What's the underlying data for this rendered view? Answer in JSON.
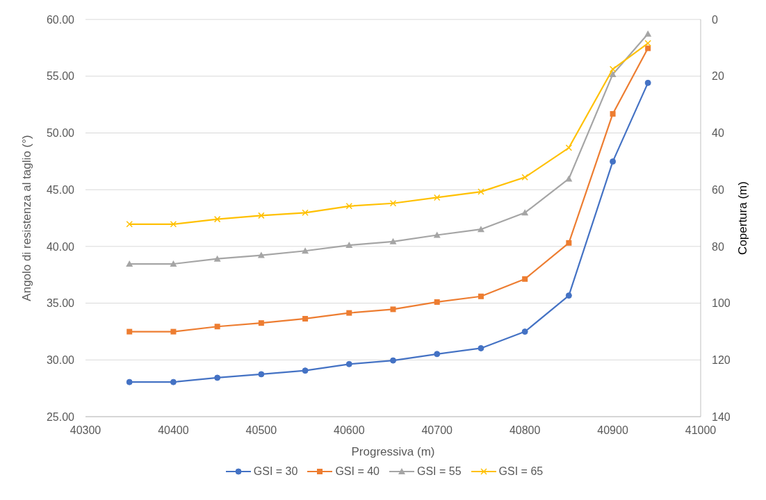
{
  "chart_data": {
    "type": "line",
    "xlabel": "Progressiva (m)",
    "ylabel": "Angolo di resistenza al taglio (°)",
    "y2label": "Copertura (m)",
    "x": [
      40350,
      40400,
      40450,
      40500,
      40550,
      40600,
      40650,
      40700,
      40750,
      40800,
      40850,
      40900,
      40940
    ],
    "series": [
      {
        "name": "GSI = 30",
        "color": "#4472c4",
        "marker": "circle",
        "values": [
          28.05,
          28.05,
          28.43,
          28.74,
          29.06,
          29.63,
          29.95,
          30.52,
          31.03,
          32.49,
          35.67,
          47.48,
          54.41
        ]
      },
      {
        "name": "GSI = 40",
        "color": "#ed7d31",
        "marker": "square",
        "values": [
          32.49,
          32.49,
          32.94,
          33.25,
          33.63,
          34.14,
          34.46,
          35.1,
          35.6,
          37.13,
          40.31,
          51.68,
          57.46
        ]
      },
      {
        "name": "GSI = 55",
        "color": "#a5a5a5",
        "marker": "triangle",
        "values": [
          38.46,
          38.46,
          38.91,
          39.22,
          39.61,
          40.11,
          40.43,
          41.0,
          41.51,
          42.97,
          45.96,
          55.17,
          58.73
        ]
      },
      {
        "name": "GSI = 65",
        "color": "#ffc000",
        "marker": "cross",
        "values": [
          41.96,
          41.96,
          42.4,
          42.72,
          42.97,
          43.55,
          43.8,
          44.31,
          44.82,
          46.09,
          48.69,
          55.62,
          57.9
        ]
      }
    ],
    "xlim": [
      40300,
      41000
    ],
    "xticks": [
      40300,
      40400,
      40500,
      40600,
      40700,
      40800,
      40900,
      41000
    ],
    "ylim": [
      25,
      60
    ],
    "yticks": [
      {
        "value": 25,
        "label": "25.00"
      },
      {
        "value": 30,
        "label": "30.00"
      },
      {
        "value": 35,
        "label": "35.00"
      },
      {
        "value": 40,
        "label": "40.00"
      },
      {
        "value": 45,
        "label": "45.00"
      },
      {
        "value": 50,
        "label": "50.00"
      },
      {
        "value": 55,
        "label": "55.00"
      },
      {
        "value": 60,
        "label": "60.00"
      }
    ],
    "y2lim": [
      140,
      0
    ],
    "y2ticks": [
      0,
      20,
      40,
      60,
      80,
      100,
      120,
      140
    ],
    "grid": "y",
    "legend": "bottom",
    "line_style": "solid"
  }
}
